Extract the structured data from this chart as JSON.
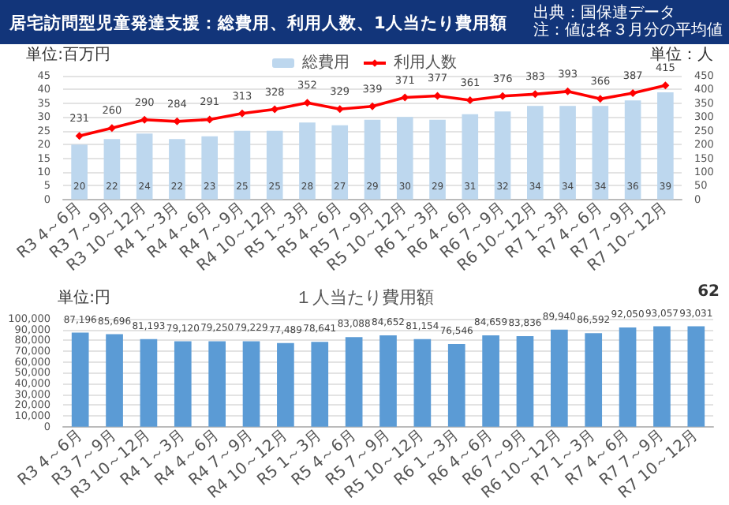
{
  "chart_data": [
    {
      "type": "bar",
      "title": "居宅訪問型児童発達支援：総費用、利用人数、1人当たり費用額",
      "ylabel": "単位:百万円",
      "y2label": "単位：人",
      "annotations": [
        "出典：国保連データ",
        "注：値は各３月分の平均値"
      ],
      "categories": [
        "R3 4～6月",
        "R3 7～9月",
        "R3 10～12月",
        "R4 1～3月",
        "R4 4～6月",
        "R4 7～9月",
        "R4 10～12月",
        "R5 1～3月",
        "R5 4～6月",
        "R5 7～9月",
        "R5 10～12月",
        "R6 1～3月",
        "R6 4～6月",
        "R6 7～9月",
        "R6 10～12月",
        "R7 1～3月",
        "R7 4～6月",
        "R7 7～9月",
        "R7 10～12月"
      ],
      "series": [
        {
          "name": "総費用",
          "type": "bar",
          "color": "#bdd7ee",
          "values": [
            20,
            22,
            24,
            22,
            23,
            25,
            25,
            28,
            27,
            29,
            30,
            29,
            31,
            32,
            34,
            34,
            34,
            36,
            39
          ]
        },
        {
          "name": "利用人数",
          "type": "line",
          "axis": "y2",
          "color": "#ff0000",
          "marker": "diamond",
          "values": [
            231,
            260,
            290,
            284,
            291,
            313,
            328,
            352,
            329,
            339,
            371,
            377,
            361,
            376,
            383,
            393,
            366,
            387,
            415
          ]
        }
      ],
      "ylim": [
        0,
        45
      ],
      "yticks": [
        0,
        5,
        10,
        15,
        20,
        25,
        30,
        35,
        40,
        45
      ],
      "y2lim": [
        0,
        450
      ],
      "y2ticks": [
        0,
        50,
        100,
        150,
        200,
        250,
        300,
        350,
        400,
        450
      ],
      "grid": "y",
      "legend": "top",
      "data_labels": true
    },
    {
      "type": "bar",
      "title": "１人当たり費用額",
      "ylabel": "単位:円",
      "annotations": [
        "62"
      ],
      "categories": [
        "R3 4～6月",
        "R3 7～9月",
        "R3 10～12月",
        "R4 1～3月",
        "R4 4～6月",
        "R4 7～9月",
        "R4 10～12月",
        "R5 1～3月",
        "R5 4～6月",
        "R5 7～9月",
        "R5 10～12月",
        "R6 1～3月",
        "R6 4～6月",
        "R6 7～9月",
        "R6 10～12月",
        "R7 1～3月",
        "R7 4～6月",
        "R7 7～9月",
        "R7 10～12月"
      ],
      "color": "#5b9bd5",
      "values": [
        87196,
        85696,
        81193,
        79120,
        79250,
        79229,
        77489,
        78641,
        83088,
        84652,
        81154,
        76546,
        84659,
        83836,
        89940,
        86592,
        92050,
        93057,
        93031
      ],
      "ylim": [
        0,
        100000
      ],
      "yticks": [
        {
          "value": 0,
          "label": "0"
        },
        {
          "value": 10000,
          "label": "10,000"
        },
        {
          "value": 20000,
          "label": "20,000"
        },
        {
          "value": 30000,
          "label": "30,000"
        },
        {
          "value": 40000,
          "label": "40,000"
        },
        {
          "value": 50000,
          "label": "50,000"
        },
        {
          "value": 60000,
          "label": "60,000"
        },
        {
          "value": 70000,
          "label": "70,000"
        },
        {
          "value": 80000,
          "label": "80,000"
        },
        {
          "value": 90000,
          "label": "90,000"
        },
        {
          "value": 100000,
          "label": "100,000"
        }
      ],
      "value_labels": [
        "87,196",
        "85,696",
        "81,193",
        "79,120",
        "79,250",
        "79,229",
        "77,489",
        "78,641",
        "83,088",
        "84,652",
        "81,154",
        "76,546",
        "84,659",
        "83,836",
        "89,940",
        "86,592",
        "92,050",
        "93,057",
        "93,031"
      ],
      "grid": "y"
    }
  ]
}
